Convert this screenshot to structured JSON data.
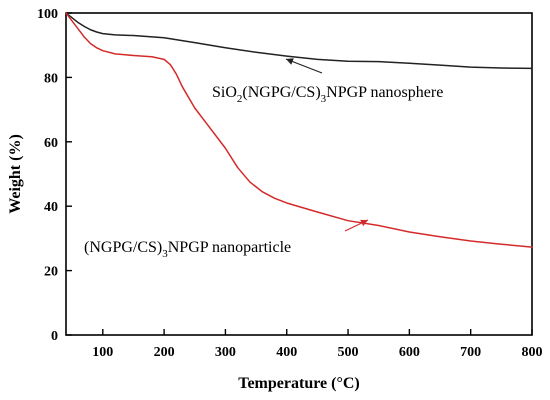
{
  "chart_data": {
    "type": "line",
    "xlabel": "Temperature (°C)",
    "ylabel": "Weight (%)",
    "xlim": [
      40,
      800
    ],
    "ylim": [
      0,
      100
    ],
    "x_ticks": [
      100,
      200,
      300,
      400,
      500,
      600,
      700,
      800
    ],
    "y_ticks": [
      0,
      20,
      40,
      60,
      80,
      100
    ],
    "grid": false,
    "series": [
      {
        "name": "SiO2(NGPG/CS)3NPGP nanosphere",
        "label_parts": [
          "SiO",
          "2",
          "(NGPG/CS)",
          "3",
          "NPGP nanosphere"
        ],
        "color": "#222222",
        "x": [
          40,
          50,
          60,
          70,
          80,
          90,
          100,
          120,
          150,
          200,
          250,
          300,
          350,
          400,
          450,
          500,
          550,
          600,
          650,
          700,
          750,
          800
        ],
        "y": [
          100,
          98.5,
          97,
          95.8,
          94.8,
          94.1,
          93.6,
          93.2,
          93.0,
          92.3,
          90.8,
          89.2,
          87.8,
          86.6,
          85.6,
          85.0,
          84.9,
          84.4,
          83.8,
          83.2,
          82.9,
          82.8
        ]
      },
      {
        "name": "(NGPG/CS)3NPGP nanoparticle",
        "label_parts": [
          "(NGPG/CS)",
          "3",
          "NPGP nanoparticle"
        ],
        "color": "#d42a2a",
        "x": [
          40,
          50,
          60,
          70,
          80,
          90,
          100,
          120,
          150,
          180,
          200,
          210,
          220,
          230,
          250,
          270,
          300,
          320,
          340,
          360,
          380,
          400,
          450,
          500,
          550,
          600,
          650,
          700,
          750,
          800
        ],
        "y": [
          100,
          97.5,
          95,
          92.5,
          90.5,
          89.2,
          88.3,
          87.3,
          86.8,
          86.4,
          85.6,
          84.0,
          81.0,
          77.0,
          70.5,
          65.5,
          58.0,
          52.0,
          47.5,
          44.5,
          42.5,
          41.0,
          38.2,
          35.5,
          34.0,
          32.0,
          30.5,
          29.2,
          28.2,
          27.3
        ]
      }
    ]
  }
}
